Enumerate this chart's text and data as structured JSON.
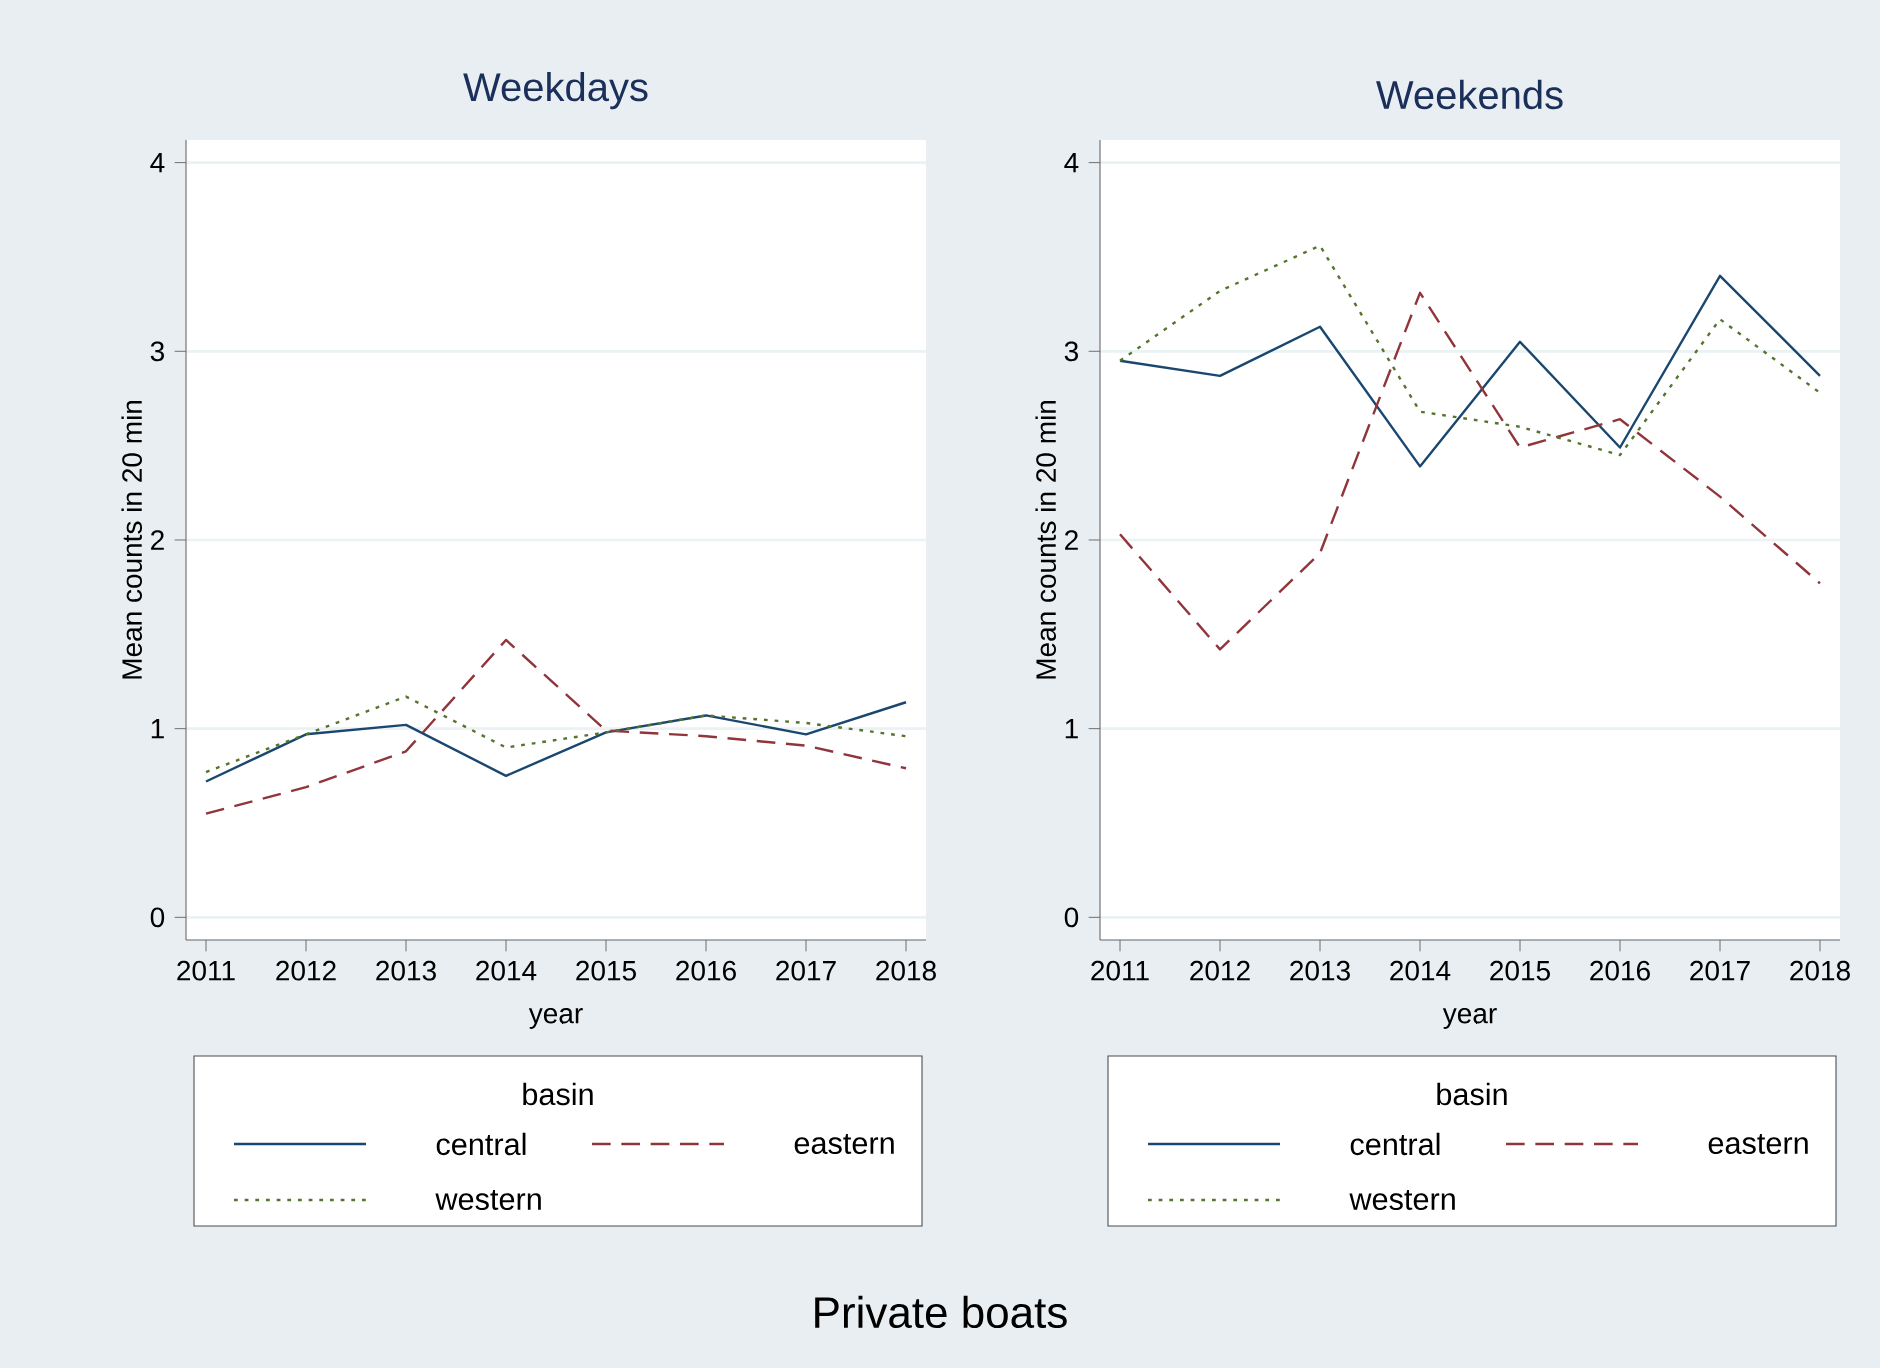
{
  "chart_data": [
    {
      "type": "line",
      "title": "Weekdays",
      "xlabel": "year",
      "ylabel": "Mean counts in 20 min",
      "legend_title": "basin",
      "legend": "bottom",
      "grid": "y",
      "x": [
        2011,
        2012,
        2013,
        2014,
        2015,
        2016,
        2017,
        2018
      ],
      "xlim": [
        2010.8,
        2018.2
      ],
      "xticks": [
        2011,
        2012,
        2013,
        2014,
        2015,
        2016,
        2017,
        2018
      ],
      "ylim": [
        0,
        4
      ],
      "yticks": [
        0,
        1,
        2,
        3,
        4
      ],
      "annotations": [
        "Private boats"
      ],
      "series": [
        {
          "name": "central",
          "color": "#1a476f",
          "line_style": "solid",
          "values": [
            0.72,
            0.97,
            1.02,
            0.75,
            0.98,
            1.07,
            0.97,
            1.14
          ]
        },
        {
          "name": "eastern",
          "color": "#90353b",
          "line_style": "dashed",
          "values": [
            0.55,
            0.69,
            0.88,
            1.47,
            0.99,
            0.96,
            0.91,
            0.79
          ]
        },
        {
          "name": "western",
          "color": "#55752f",
          "line_style": "dotted",
          "values": [
            0.77,
            0.97,
            1.17,
            0.9,
            0.98,
            1.07,
            1.03,
            0.96
          ]
        }
      ]
    },
    {
      "type": "line",
      "title": "Weekends",
      "xlabel": "year",
      "ylabel": "Mean counts in 20 min",
      "legend_title": "basin",
      "legend": "bottom",
      "grid": "y",
      "x": [
        2011,
        2012,
        2013,
        2014,
        2015,
        2016,
        2017,
        2018
      ],
      "xlim": [
        2010.8,
        2018.2
      ],
      "xticks": [
        2011,
        2012,
        2013,
        2014,
        2015,
        2016,
        2017,
        2018
      ],
      "ylim": [
        0,
        4
      ],
      "yticks": [
        0,
        1,
        2,
        3,
        4
      ],
      "series": [
        {
          "name": "central",
          "color": "#1a476f",
          "line_style": "solid",
          "values": [
            2.95,
            2.87,
            3.13,
            2.39,
            3.05,
            2.49,
            3.4,
            2.87
          ]
        },
        {
          "name": "eastern",
          "color": "#90353b",
          "line_style": "dashed",
          "values": [
            2.03,
            1.42,
            1.93,
            3.31,
            2.49,
            2.64,
            2.23,
            1.77
          ]
        },
        {
          "name": "western",
          "color": "#55752f",
          "line_style": "dotted",
          "values": [
            2.95,
            3.32,
            3.56,
            2.68,
            2.6,
            2.45,
            3.17,
            2.78
          ]
        }
      ]
    }
  ]
}
